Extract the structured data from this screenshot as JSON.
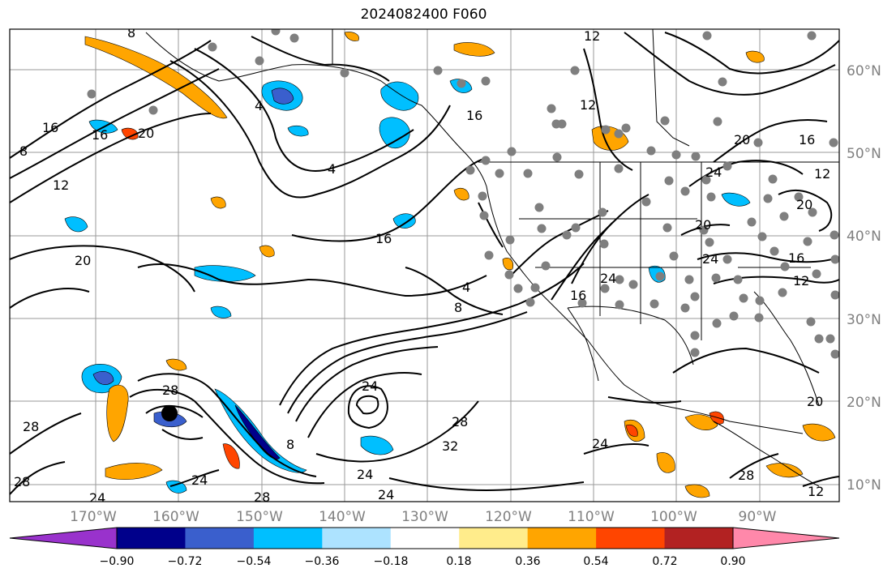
{
  "title": "2024082400 F060",
  "map": {
    "lon_ticks": [
      "170°W",
      "160°W",
      "150°W",
      "140°W",
      "130°W",
      "120°W",
      "110°W",
      "100°W",
      "90°W"
    ],
    "lat_ticks": [
      "60°N",
      "50°N",
      "40°N",
      "30°N",
      "20°N",
      "10°N"
    ],
    "contour_labels": [
      "8",
      "12",
      "16",
      "20",
      "4",
      "8",
      "12",
      "16",
      "20",
      "20",
      "24",
      "28",
      "24",
      "28",
      "8",
      "24",
      "28",
      "24",
      "32",
      "28",
      "24",
      "4",
      "8",
      "16",
      "24",
      "16",
      "12",
      "20",
      "16",
      "12",
      "24",
      "20",
      "16",
      "12",
      "20",
      "24",
      "28",
      "4",
      "16",
      "12",
      "28",
      "24"
    ]
  },
  "colorbar": {
    "colors": [
      "#9932CC",
      "#00008B",
      "#3A5FCD",
      "#00BFFF",
      "#ADE3FF",
      "#FFFFFF",
      "#FFEC8B",
      "#FFA500",
      "#FF4500",
      "#B22222",
      "#FF88AA"
    ],
    "tick_labels": [
      "−0.90",
      "−0.72",
      "−0.54",
      "−0.36",
      "−0.18",
      "0.18",
      "0.36",
      "0.54",
      "0.72",
      "0.90"
    ]
  }
}
